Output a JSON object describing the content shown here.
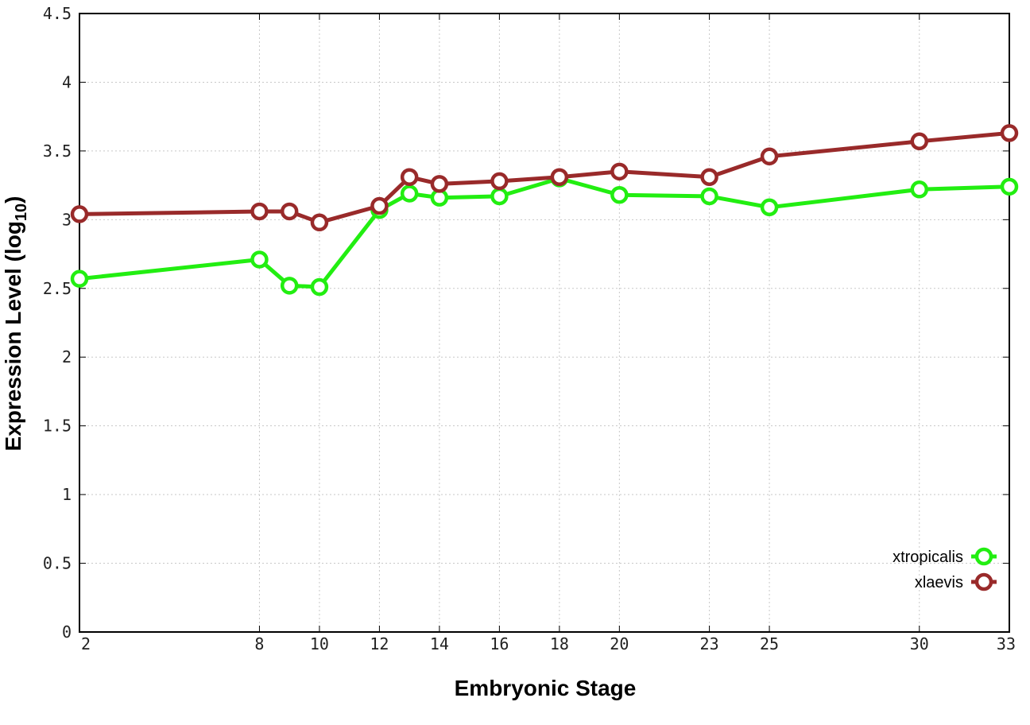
{
  "chart_data": {
    "type": "line",
    "xlabel": "Embryonic Stage",
    "ylabel": "Expression Level (log",
    "ylabel_subscript": "10",
    "ylabel_suffix": ")",
    "x_ticks": [
      2,
      8,
      10,
      12,
      14,
      16,
      18,
      20,
      23,
      25,
      30,
      33
    ],
    "x_tick_labels": [
      "2",
      "8",
      "10",
      "12",
      "14",
      "16",
      "18",
      "20",
      "23",
      "25",
      "30",
      "33"
    ],
    "y_ticks": [
      0,
      0.5,
      1,
      1.5,
      2,
      2.5,
      3,
      3.5,
      4,
      4.5
    ],
    "y_tick_labels": [
      "0",
      "0.5",
      "1",
      "1.5",
      "2",
      "2.5",
      "3",
      "3.5",
      "4",
      "4.5"
    ],
    "ylim": [
      0,
      4.5
    ],
    "grid": true,
    "legend_position": "bottom-right",
    "x": [
      2,
      8,
      9,
      10,
      12,
      13,
      14,
      16,
      18,
      20,
      23,
      25,
      30,
      33
    ],
    "series": [
      {
        "name": "xtropicalis",
        "color": "#22ee11",
        "values": [
          2.57,
          2.71,
          2.52,
          2.51,
          3.07,
          3.19,
          3.16,
          3.17,
          3.3,
          3.18,
          3.17,
          3.09,
          3.22,
          3.24
        ]
      },
      {
        "name": "xlaevis",
        "color": "#992a2a",
        "values": [
          3.04,
          3.06,
          3.06,
          2.98,
          3.1,
          3.31,
          3.26,
          3.28,
          3.31,
          3.35,
          3.31,
          3.46,
          3.57,
          3.63
        ]
      }
    ]
  }
}
